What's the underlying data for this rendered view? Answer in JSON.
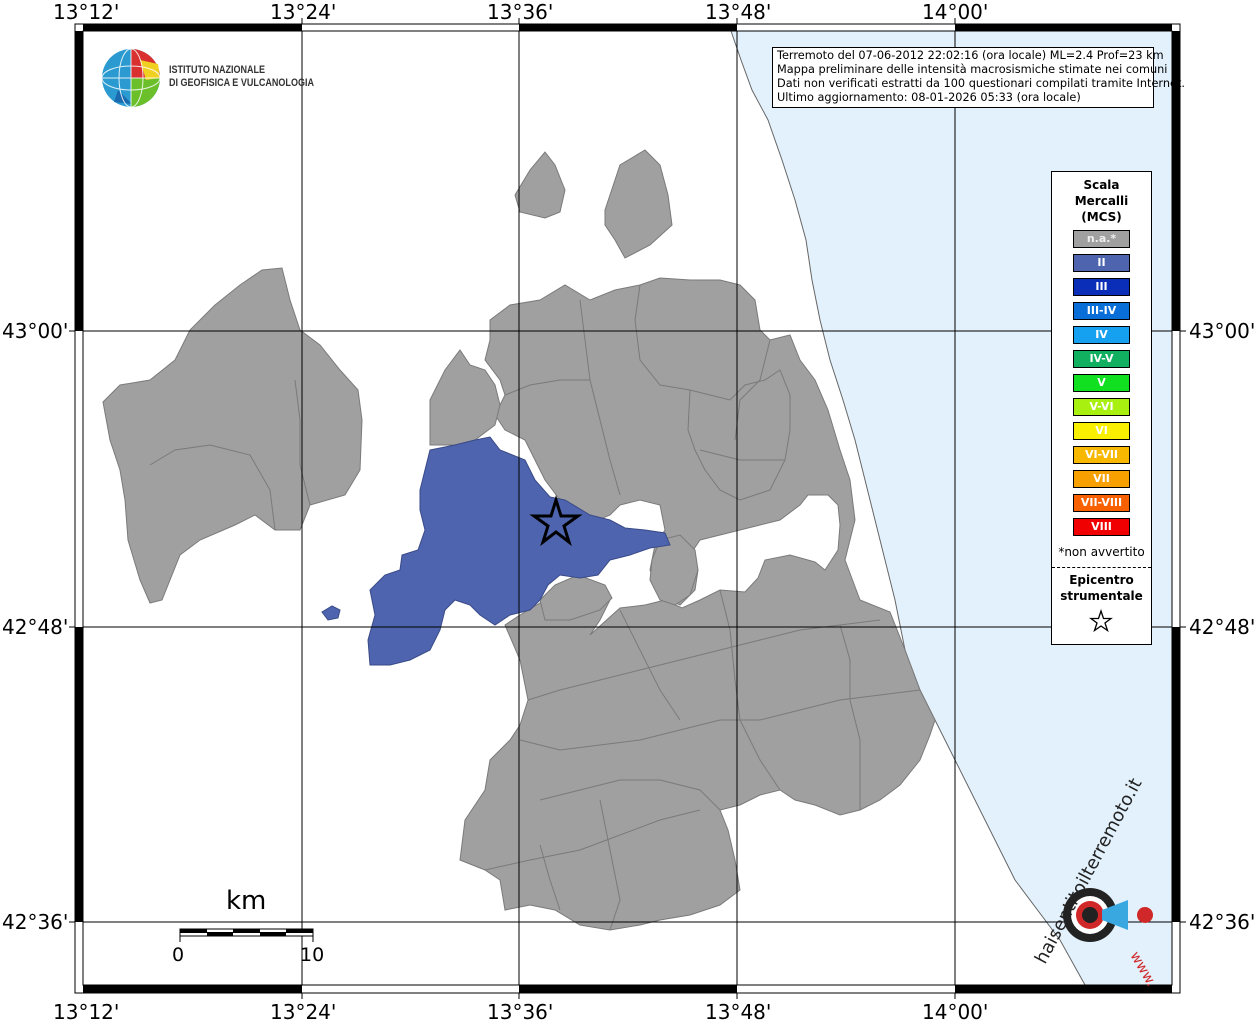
{
  "coordinates": {
    "lon_labels": [
      "13°12'",
      "13°24'",
      "13°36'",
      "13°48'",
      "14°00'"
    ],
    "lat_labels": [
      "43°00'",
      "42°48'",
      "42°36'"
    ]
  },
  "logo": {
    "line1": "ISTITUTO NAZIONALE",
    "line2": "DI GEOFISICA E VULCANOLOGIA"
  },
  "info": {
    "line1": "Terremoto del 07-06-2012 22:02:16 (ora locale) ML=2.4 Prof=23 km",
    "line2": "Mappa preliminare delle intensità macrosismiche stimate nei comuni",
    "line3": "Dati non verificati estratti da 100 questionari compilati tramite Internet.",
    "line4": "Ultimo aggiornamento: 08-01-2026 05:33 (ora locale)"
  },
  "legend": {
    "title1": "Scala",
    "title2": "Mercalli",
    "title3": "(MCS)",
    "items": [
      {
        "label": "n.a.*",
        "color": "#a0a0a0"
      },
      {
        "label": "II",
        "color": "#4e64ae"
      },
      {
        "label": "III",
        "color": "#0a2eb8"
      },
      {
        "label": "III-IV",
        "color": "#0a6ed8"
      },
      {
        "label": "IV",
        "color": "#16a0f0"
      },
      {
        "label": "IV-V",
        "color": "#10b060"
      },
      {
        "label": "V",
        "color": "#10e020"
      },
      {
        "label": "V-VI",
        "color": "#a8f010"
      },
      {
        "label": "VI",
        "color": "#f8f000"
      },
      {
        "label": "VI-VII",
        "color": "#f8b800"
      },
      {
        "label": "VII",
        "color": "#f8a000"
      },
      {
        "label": "VII-VIII",
        "color": "#f86000"
      },
      {
        "label": "VIII",
        "color": "#f00000"
      }
    ],
    "note": "*non avvertito",
    "epicenter1": "Epicentro",
    "epicenter2": "strumentale"
  },
  "scale_bar": {
    "unit": "km",
    "start": "0",
    "end": "10"
  },
  "watermark": {
    "text1": "haisentitoilterremoto.it",
    "text2": "www."
  },
  "colors": {
    "sea": "#e2f1fc",
    "municipality": "#a0a0a0",
    "intensity_II": "#4e64ae"
  }
}
